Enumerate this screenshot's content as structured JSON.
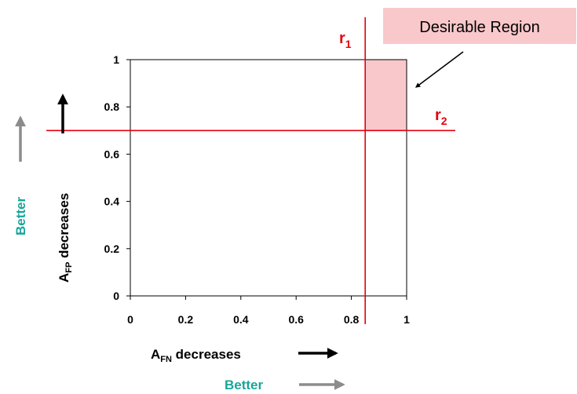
{
  "chart_data": {
    "type": "line",
    "title": "",
    "x_ticks": [
      "0",
      "0.2",
      "0.4",
      "0.6",
      "0.8",
      "1"
    ],
    "y_ticks": [
      "0",
      "0.2",
      "0.4",
      "0.6",
      "0.8",
      "1"
    ],
    "xlim": [
      0,
      1
    ],
    "ylim": [
      0,
      1
    ],
    "grid": false,
    "xlabel": {
      "main": "A",
      "sub": "FN",
      "rest": " decreases"
    },
    "ylabel": {
      "main": "A",
      "sub": "FP",
      "rest": " decreases"
    },
    "better_x": "Better",
    "better_y": "Better",
    "thresholds": [
      {
        "name": "r",
        "sub": "1",
        "orientation": "vertical",
        "value": 0.85
      },
      {
        "name": "r",
        "sub": "2",
        "orientation": "horizontal",
        "value": 0.7
      }
    ],
    "region": {
      "label": "Desirable Region",
      "x_range": [
        0.85,
        1
      ],
      "y_range": [
        0.7,
        1
      ]
    },
    "colors": {
      "threshold": "#e4000f",
      "region_fill": "#f9c8cb",
      "better_text": "#1aa59a",
      "better_arrow": "#8c8c8c"
    }
  }
}
